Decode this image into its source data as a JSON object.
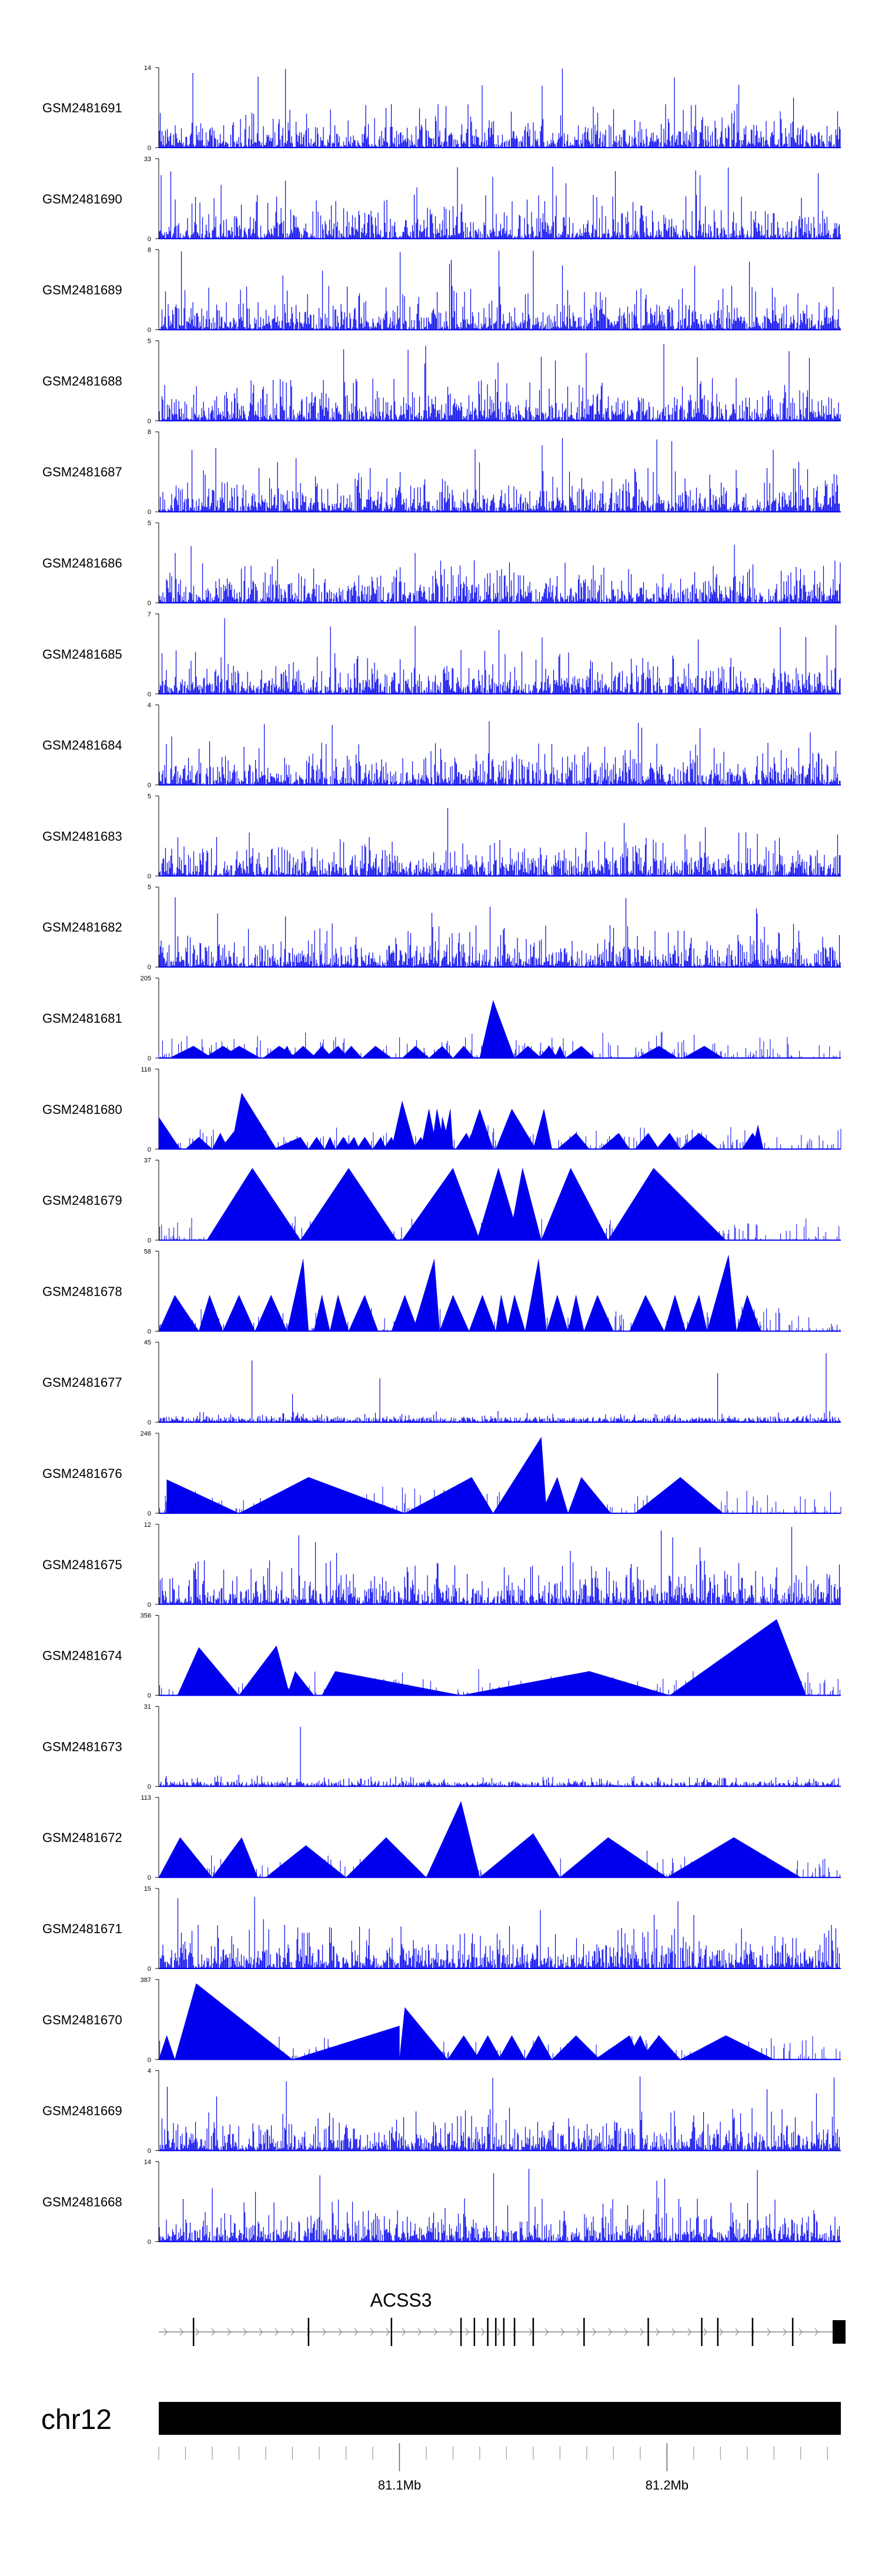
{
  "chart_data": {
    "type": "area",
    "title": "",
    "signal_color": "#0000ee",
    "x_range_mb": [
      81.01,
      81.265
    ],
    "tracks": [
      {
        "sample": "GSM2481691",
        "ymax": 14,
        "ymin": 0,
        "style": "spiky",
        "seed": 11
      },
      {
        "sample": "GSM2481690",
        "ymax": 33,
        "ymin": 0,
        "style": "spiky",
        "seed": 12
      },
      {
        "sample": "GSM2481689",
        "ymax": 8,
        "ymin": 0,
        "style": "spiky",
        "seed": 13
      },
      {
        "sample": "GSM2481688",
        "ymax": 5,
        "ymin": 0,
        "style": "spiky",
        "seed": 14
      },
      {
        "sample": "GSM2481687",
        "ymax": 8,
        "ymin": 0,
        "style": "spiky",
        "seed": 15
      },
      {
        "sample": "GSM2481686",
        "ymax": 5,
        "ymin": 0,
        "style": "spiky",
        "seed": 16
      },
      {
        "sample": "GSM2481685",
        "ymax": 7,
        "ymin": 0,
        "style": "spiky",
        "seed": 17
      },
      {
        "sample": "GSM2481684",
        "ymax": 4,
        "ymin": 0,
        "style": "spiky",
        "seed": 18
      },
      {
        "sample": "GSM2481683",
        "ymax": 5,
        "ymin": 0,
        "style": "spiky",
        "seed": 19
      },
      {
        "sample": "GSM2481682",
        "ymax": 5,
        "ymin": 0,
        "style": "spiky",
        "seed": 20
      },
      {
        "sample": "GSM2481681",
        "ymax": 205,
        "ymin": 0,
        "style": "triangles",
        "seed": 21
      },
      {
        "sample": "GSM2481680",
        "ymax": 116,
        "ymin": 0,
        "style": "triangles",
        "seed": 22
      },
      {
        "sample": "GSM2481679",
        "ymax": 37,
        "ymin": 0,
        "style": "triangles",
        "seed": 23
      },
      {
        "sample": "GSM2481678",
        "ymax": 58,
        "ymin": 0,
        "style": "triangles",
        "seed": 24
      },
      {
        "sample": "GSM2481677",
        "ymax": 45,
        "ymin": 0,
        "style": "sparse",
        "seed": 25
      },
      {
        "sample": "GSM2481676",
        "ymax": 246,
        "ymin": 0,
        "style": "triangles",
        "seed": 26
      },
      {
        "sample": "GSM2481675",
        "ymax": 12,
        "ymin": 0,
        "style": "spiky",
        "seed": 27
      },
      {
        "sample": "GSM2481674",
        "ymax": 356,
        "ymin": 0,
        "style": "triangles",
        "seed": 28
      },
      {
        "sample": "GSM2481673",
        "ymax": 31,
        "ymin": 0,
        "style": "sparse",
        "seed": 29
      },
      {
        "sample": "GSM2481672",
        "ymax": 113,
        "ymin": 0,
        "style": "triangles",
        "seed": 30
      },
      {
        "sample": "GSM2481671",
        "ymax": 15,
        "ymin": 0,
        "style": "spiky",
        "seed": 31
      },
      {
        "sample": "GSM2481670",
        "ymax": 387,
        "ymin": 0,
        "style": "triangles",
        "seed": 32
      },
      {
        "sample": "GSM2481669",
        "ymax": 4,
        "ymin": 0,
        "style": "spiky",
        "seed": 33
      },
      {
        "sample": "GSM2481668",
        "ymax": 14,
        "ymin": 0,
        "style": "spiky",
        "seed": 34
      }
    ],
    "triangle_peaks": {
      "GSM2481681": [
        [
          81.014,
          81.023,
          81.03,
          0.15
        ],
        [
          81.027,
          81.034,
          81.041,
          0.15
        ],
        [
          81.033,
          81.04,
          81.048,
          0.15
        ],
        [
          81.049,
          81.055,
          81.062,
          0.15
        ],
        [
          81.055,
          81.058,
          81.06,
          0.15
        ],
        [
          81.059,
          81.064,
          81.069,
          0.15
        ],
        [
          81.067,
          81.071,
          81.075,
          0.15
        ],
        [
          81.072,
          81.077,
          81.081,
          0.15
        ],
        [
          81.078,
          81.082,
          81.086,
          0.15
        ],
        [
          81.086,
          81.091,
          81.097,
          0.15
        ],
        [
          81.101,
          81.106,
          81.111,
          0.15
        ],
        [
          81.111,
          81.116,
          81.12,
          0.15
        ],
        [
          81.12,
          81.124,
          81.128,
          0.15
        ],
        [
          81.13,
          81.135,
          81.143,
          0.72
        ],
        [
          81.143,
          81.148,
          81.153,
          0.15
        ],
        [
          81.152,
          81.156,
          81.159,
          0.15
        ],
        [
          81.158,
          81.16,
          81.162,
          0.15
        ],
        [
          81.162,
          81.168,
          81.173,
          0.15
        ],
        [
          81.189,
          81.197,
          81.204,
          0.15
        ],
        [
          81.206,
          81.214,
          81.221,
          0.15
        ]
      ],
      "GSM2481680": [
        [
          81.01,
          81.01,
          81.018,
          0.4
        ],
        [
          81.02,
          81.025,
          81.03,
          0.15
        ],
        [
          81.03,
          81.033,
          81.036,
          0.2
        ],
        [
          81.033,
          81.04,
          81.042,
          0.3
        ],
        [
          81.037,
          81.041,
          81.054,
          0.7
        ],
        [
          81.053,
          81.063,
          81.066,
          0.15
        ],
        [
          81.066,
          81.069,
          81.072,
          0.15
        ],
        [
          81.072,
          81.074,
          81.076,
          0.15
        ],
        [
          81.076,
          81.079,
          81.082,
          0.15
        ],
        [
          81.08,
          81.083,
          81.085,
          0.15
        ],
        [
          81.084,
          81.087,
          81.09,
          0.15
        ],
        [
          81.09,
          81.093,
          81.095,
          0.15
        ],
        [
          81.094,
          81.097,
          81.099,
          0.15
        ],
        [
          81.097,
          81.101,
          81.106,
          0.6
        ],
        [
          81.105,
          81.108,
          81.11,
          0.15
        ],
        [
          81.108,
          81.111,
          81.114,
          0.5
        ],
        [
          81.112,
          81.114,
          81.117,
          0.5
        ],
        [
          81.115,
          81.116,
          81.119,
          0.4
        ],
        [
          81.116,
          81.119,
          81.12,
          0.5
        ],
        [
          81.121,
          81.125,
          81.128,
          0.2
        ],
        [
          81.125,
          81.13,
          81.135,
          0.5
        ],
        [
          81.136,
          81.142,
          81.151,
          0.5
        ],
        [
          81.15,
          81.154,
          81.157,
          0.5
        ],
        [
          81.159,
          81.166,
          81.171,
          0.2
        ],
        [
          81.175,
          81.182,
          81.186,
          0.2
        ],
        [
          81.188,
          81.193,
          81.197,
          0.2
        ],
        [
          81.196,
          81.201,
          81.205,
          0.2
        ],
        [
          81.205,
          81.212,
          81.219,
          0.2
        ],
        [
          81.228,
          81.232,
          81.236,
          0.2
        ],
        [
          81.232,
          81.234,
          81.236,
          0.3
        ]
      ],
      "GSM2481679": [
        [
          81.028,
          81.045,
          81.063,
          0.9
        ],
        [
          81.063,
          81.081,
          81.099,
          0.9
        ],
        [
          81.101,
          81.12,
          81.13,
          0.9
        ],
        [
          81.129,
          81.137,
          81.145,
          0.9
        ],
        [
          81.141,
          81.146,
          81.153,
          0.9
        ],
        [
          81.153,
          81.164,
          81.178,
          0.9
        ],
        [
          81.178,
          81.195,
          81.222,
          0.9
        ]
      ],
      "GSM2481678": [
        [
          81.01,
          81.016,
          81.025,
          0.45
        ],
        [
          81.025,
          81.029,
          81.034,
          0.45
        ],
        [
          81.034,
          81.04,
          81.046,
          0.45
        ],
        [
          81.046,
          81.052,
          81.058,
          0.45
        ],
        [
          81.058,
          81.064,
          81.066,
          0.9
        ],
        [
          81.068,
          81.071,
          81.074,
          0.45
        ],
        [
          81.074,
          81.077,
          81.081,
          0.45
        ],
        [
          81.081,
          81.087,
          81.092,
          0.45
        ],
        [
          81.097,
          81.102,
          81.107,
          0.45
        ],
        [
          81.105,
          81.113,
          81.115,
          0.9
        ],
        [
          81.115,
          81.12,
          81.126,
          0.45
        ],
        [
          81.126,
          81.131,
          81.136,
          0.45
        ],
        [
          81.136,
          81.138,
          81.141,
          0.45
        ],
        [
          81.14,
          81.143,
          81.147,
          0.45
        ],
        [
          81.147,
          81.152,
          81.155,
          0.9
        ],
        [
          81.155,
          81.159,
          81.163,
          0.45
        ],
        [
          81.163,
          81.166,
          81.169,
          0.45
        ],
        [
          81.169,
          81.174,
          81.18,
          0.45
        ],
        [
          81.186,
          81.192,
          81.199,
          0.45
        ],
        [
          81.199,
          81.203,
          81.207,
          0.45
        ],
        [
          81.207,
          81.212,
          81.215,
          0.45
        ],
        [
          81.215,
          81.223,
          81.226,
          0.95
        ],
        [
          81.226,
          81.23,
          81.235,
          0.45
        ]
      ],
      "GSM2481676": [
        [
          81.013,
          81.013,
          81.04,
          0.42
        ],
        [
          81.04,
          81.066,
          81.102,
          0.45
        ],
        [
          81.102,
          81.127,
          81.135,
          0.45
        ],
        [
          81.135,
          81.153,
          81.155,
          0.95
        ],
        [
          81.153,
          81.159,
          81.163,
          0.45
        ],
        [
          81.163,
          81.168,
          81.179,
          0.45
        ],
        [
          81.188,
          81.205,
          81.221,
          0.45
        ]
      ],
      "GSM2481674": [
        [
          81.017,
          81.025,
          81.04,
          0.6
        ],
        [
          81.04,
          81.054,
          81.059,
          0.62
        ],
        [
          81.058,
          81.061,
          81.068,
          0.3
        ],
        [
          81.071,
          81.076,
          81.123,
          0.3
        ],
        [
          81.123,
          81.171,
          81.201,
          0.3
        ],
        [
          81.201,
          81.241,
          81.252,
          0.95
        ]
      ],
      "GSM2481672": [
        [
          81.01,
          81.018,
          81.03,
          0.5
        ],
        [
          81.03,
          81.041,
          81.047,
          0.5
        ],
        [
          81.05,
          81.065,
          81.08,
          0.4
        ],
        [
          81.08,
          81.095,
          81.11,
          0.5
        ],
        [
          81.11,
          81.123,
          81.13,
          0.95
        ],
        [
          81.13,
          81.15,
          81.16,
          0.55
        ],
        [
          81.16,
          81.178,
          81.2,
          0.5
        ],
        [
          81.2,
          81.225,
          81.25,
          0.5
        ]
      ],
      "GSM2481670": [
        [
          81.01,
          81.013,
          81.016,
          0.3
        ],
        [
          81.016,
          81.024,
          81.06,
          0.95
        ],
        [
          81.06,
          81.1,
          81.1,
          0.42
        ],
        [
          81.1,
          81.102,
          81.118,
          0.65
        ],
        [
          81.118,
          81.124,
          81.13,
          0.3
        ],
        [
          81.128,
          81.133,
          81.138,
          0.3
        ],
        [
          81.137,
          81.142,
          81.147,
          0.3
        ],
        [
          81.147,
          81.152,
          81.157,
          0.3
        ],
        [
          81.157,
          81.166,
          81.175,
          0.3
        ],
        [
          81.173,
          81.186,
          81.19,
          0.3
        ],
        [
          81.185,
          81.19,
          81.194,
          0.3
        ],
        [
          81.19,
          81.197,
          81.205,
          0.3
        ],
        [
          81.205,
          81.222,
          81.24,
          0.3
        ]
      ]
    },
    "gene": {
      "name": "ACSS3",
      "start_mb": 81.01,
      "end_mb": 81.265,
      "strand": "+",
      "exons_mb": [
        81.023,
        81.066,
        81.097,
        81.123,
        81.128,
        81.133,
        81.136,
        81.139,
        81.143,
        81.15,
        81.169,
        81.193,
        81.213,
        81.219,
        81.232,
        81.247
      ]
    },
    "ideogram": {
      "chrom": "chr12",
      "minor_ticks_mb": [
        81.01,
        81.02,
        81.03,
        81.04,
        81.05,
        81.06,
        81.07,
        81.08,
        81.09,
        81.1,
        81.11,
        81.12,
        81.13,
        81.14,
        81.15,
        81.16,
        81.17,
        81.18,
        81.19,
        81.2,
        81.21,
        81.22,
        81.23,
        81.24,
        81.25,
        81.26
      ],
      "major_ticks_mb": [
        81.1,
        81.2
      ],
      "major_tick_labels": [
        "81.1Mb",
        "81.2Mb"
      ]
    }
  }
}
